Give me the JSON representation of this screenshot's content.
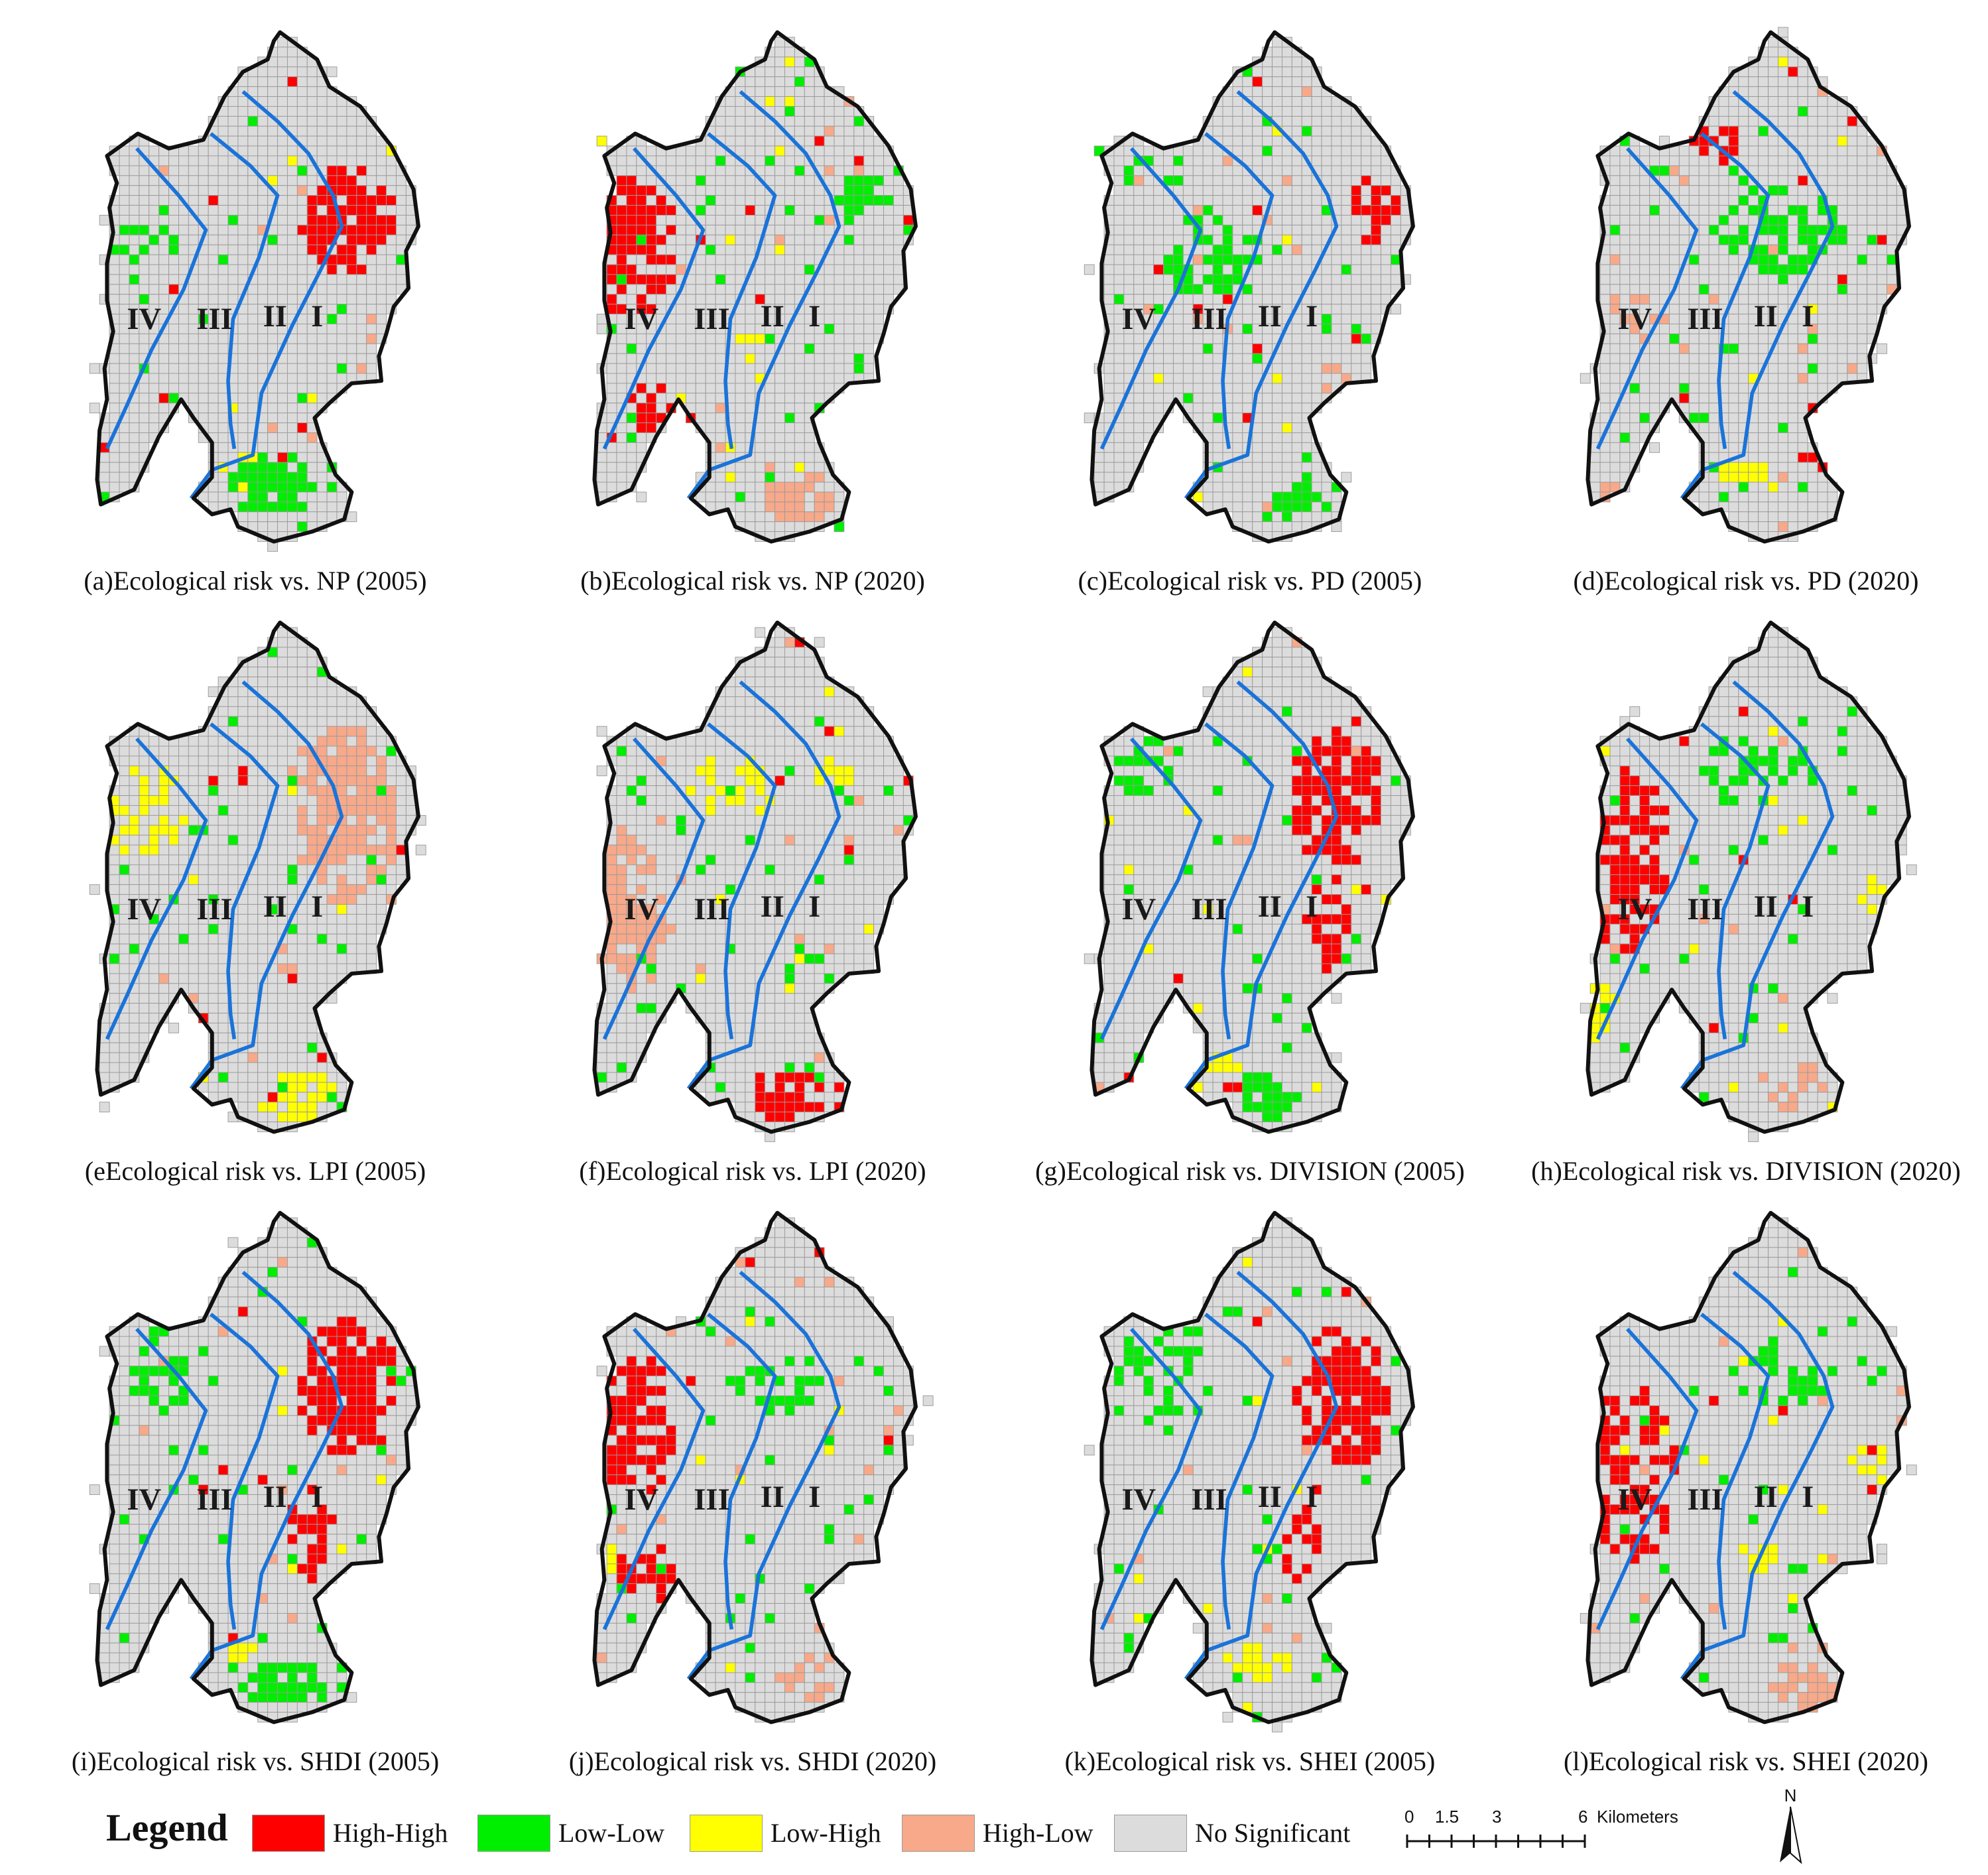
{
  "panels": [
    {
      "id": "a",
      "caption": "(a)Ecological risk vs. NP (2005)",
      "pattern": "np05"
    },
    {
      "id": "b",
      "caption": "(b)Ecological risk vs. NP (2020)",
      "pattern": "np20"
    },
    {
      "id": "c",
      "caption": "(c)Ecological risk vs. PD (2005)",
      "pattern": "pd05"
    },
    {
      "id": "d",
      "caption": "(d)Ecological risk vs. PD (2020)",
      "pattern": "pd20"
    },
    {
      "id": "e",
      "caption": "(eEcological risk vs. LPI (2005)",
      "pattern": "lpi05"
    },
    {
      "id": "f",
      "caption": "(f)Ecological risk vs. LPI (2020)",
      "pattern": "lpi20"
    },
    {
      "id": "g",
      "caption": "(g)Ecological risk vs. DIVISION (2005)",
      "pattern": "div05"
    },
    {
      "id": "h",
      "caption": "(h)Ecological risk vs. DIVISION (2020)",
      "pattern": "div20"
    },
    {
      "id": "i",
      "caption": "(i)Ecological risk vs. SHDI (2005)",
      "pattern": "shdi05"
    },
    {
      "id": "j",
      "caption": "(j)Ecological risk vs. SHDI (2020)",
      "pattern": "shdi20"
    },
    {
      "id": "k",
      "caption": "(k)Ecological risk vs. SHEI (2005)",
      "pattern": "shei05"
    },
    {
      "id": "l",
      "caption": "(l)Ecological risk vs. SHEI (2020)",
      "pattern": "shei20"
    }
  ],
  "zone_labels": [
    "IV",
    "III",
    "II",
    "I"
  ],
  "legend": {
    "title": "Legend",
    "items": [
      {
        "label": "High-High",
        "color": "#ff0000"
      },
      {
        "label": "Low-Low",
        "color": "#00ee00"
      },
      {
        "label": "Low-High",
        "color": "#ffff00"
      },
      {
        "label": "High-Low",
        "color": "#f7a98a"
      },
      {
        "label": "No Significant",
        "color": "#dcdcdc"
      }
    ]
  },
  "scale": {
    "ticks": [
      "0",
      "1.5",
      "3",
      "6"
    ],
    "unit": "Kilometers"
  },
  "north_label": "N",
  "colors": {
    "boundary": "#111111",
    "zone_line": "#1a73d9",
    "grid_line": "#9a9a9a",
    "no_significant": "#dcdcdc"
  }
}
